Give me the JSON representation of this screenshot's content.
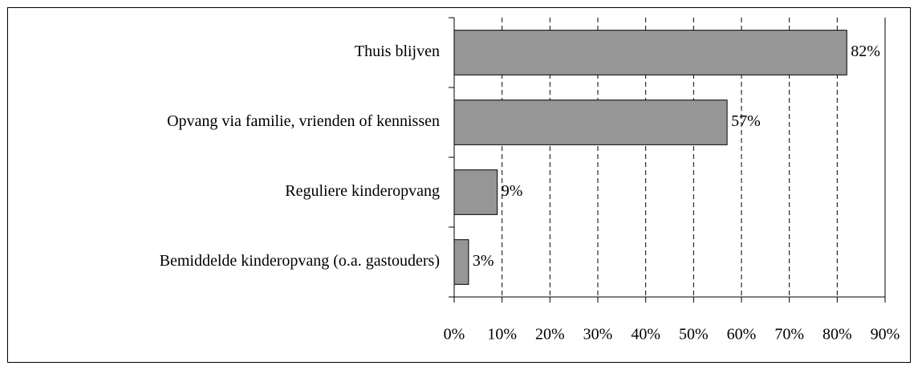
{
  "chart_data": {
    "type": "bar",
    "orientation": "horizontal",
    "categories": [
      "Thuis blijven",
      "Opvang via familie, vrienden of kennissen",
      "Reguliere kinderopvang",
      "Bemiddelde kinderopvang (o.a. gastouders)"
    ],
    "values": [
      82,
      57,
      9,
      3
    ],
    "value_labels": [
      "82%",
      "57%",
      "9%",
      "3%"
    ],
    "color": "#969696",
    "xlim": [
      0,
      90
    ],
    "xticks": [
      {
        "value": 0,
        "label": "0%"
      },
      {
        "value": 10,
        "label": "10%"
      },
      {
        "value": 20,
        "label": "20%"
      },
      {
        "value": 30,
        "label": "30%"
      },
      {
        "value": 40,
        "label": "40%"
      },
      {
        "value": 50,
        "label": "50%"
      },
      {
        "value": 60,
        "label": "60%"
      },
      {
        "value": 70,
        "label": "70%"
      },
      {
        "value": 80,
        "label": "80%"
      },
      {
        "value": 90,
        "label": "90%"
      }
    ],
    "grid": true
  }
}
